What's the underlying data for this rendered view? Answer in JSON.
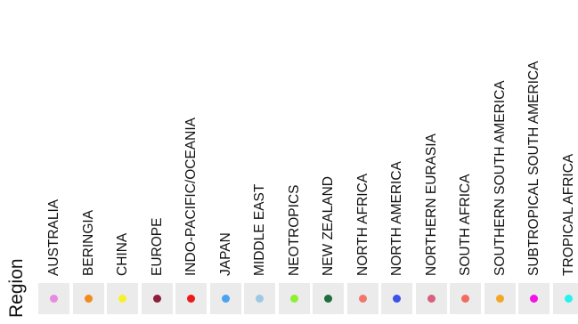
{
  "chart_data": {
    "type": "legend",
    "title": "Region",
    "entries": [
      {
        "label": "AUSTRALIA",
        "color": "#e88ae0"
      },
      {
        "label": "BERINGIA",
        "color": "#f38a1b"
      },
      {
        "label": "CHINA",
        "color": "#f7f12c"
      },
      {
        "label": "EUROPE",
        "color": "#8c1f3b"
      },
      {
        "label": "INDO-PACIFIC/OCEANIA",
        "color": "#ee1a1a"
      },
      {
        "label": "JAPAN",
        "color": "#4aa3f0"
      },
      {
        "label": "MIDDLE EAST",
        "color": "#9ec9e2"
      },
      {
        "label": "NEOTROPICS",
        "color": "#8df032"
      },
      {
        "label": "NEW ZEALAND",
        "color": "#1f6d3a"
      },
      {
        "label": "NORTH AFRICA",
        "color": "#f0786a"
      },
      {
        "label": "NORTH AMERICA",
        "color": "#3a53e8"
      },
      {
        "label": "NORTHERN EURASIA",
        "color": "#d8607e"
      },
      {
        "label": "SOUTH AFRICA",
        "color": "#f26b5e"
      },
      {
        "label": "SOUTHERN SOUTH AMERICA",
        "color": "#f4a626"
      },
      {
        "label": "SUBTROPICAL SOUTH AMERICA",
        "color": "#f213e4"
      },
      {
        "label": "TROPICAL AFRICA",
        "color": "#26f2f0"
      }
    ]
  }
}
